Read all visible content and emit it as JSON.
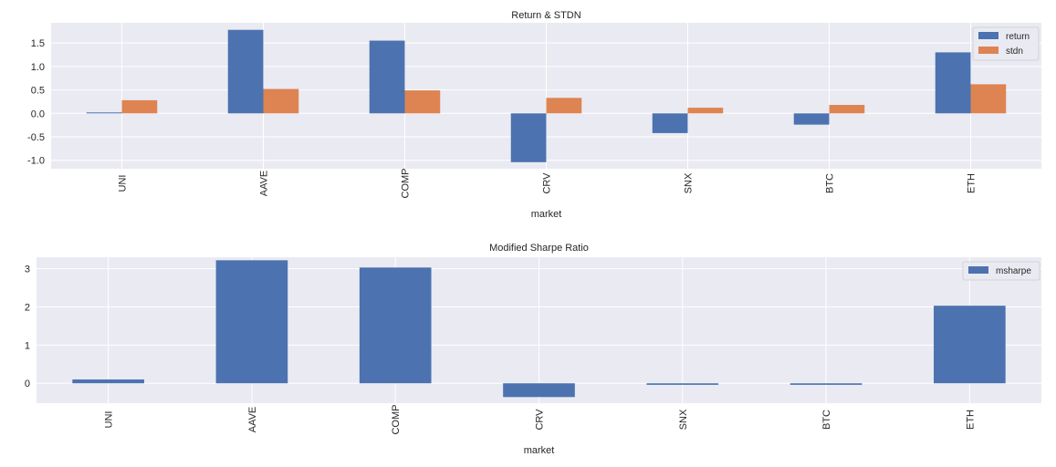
{
  "chart_data": [
    {
      "type": "bar",
      "title": "Return & STDN",
      "xlabel": "market",
      "ylabel": "",
      "categories": [
        "UNI",
        "AAVE",
        "COMP",
        "CRV",
        "SNX",
        "BTC",
        "ETH"
      ],
      "series": [
        {
          "name": "return",
          "color": "#4c72b0",
          "values": [
            0.02,
            1.78,
            1.55,
            -1.04,
            -0.42,
            -0.24,
            1.3
          ]
        },
        {
          "name": "stdn",
          "color": "#dd8452",
          "values": [
            0.28,
            0.52,
            0.49,
            0.33,
            0.12,
            0.18,
            0.62
          ]
        }
      ],
      "ylim": [
        -1.18,
        1.93
      ],
      "yticks": [
        "1.5",
        "1.0",
        "0.5",
        "0.0",
        "-0.5",
        "-1.0"
      ],
      "ytick_values": [
        1.5,
        1.0,
        0.5,
        0.0,
        -0.5,
        -1.0
      ],
      "grid": true,
      "legend": "top-right"
    },
    {
      "type": "bar",
      "title": "Modified Sharpe Ratio",
      "xlabel": "market",
      "ylabel": "",
      "categories": [
        "UNI",
        "AAVE",
        "COMP",
        "CRV",
        "SNX",
        "BTC",
        "ETH"
      ],
      "series": [
        {
          "name": "msharpe",
          "color": "#4c72b0",
          "values": [
            0.1,
            3.22,
            3.03,
            -0.36,
            -0.04,
            -0.04,
            2.03
          ]
        }
      ],
      "ylim": [
        -0.52,
        3.3
      ],
      "yticks": [
        "3",
        "2",
        "1",
        "0"
      ],
      "ytick_values": [
        3,
        2,
        1,
        0
      ],
      "grid": true,
      "legend": "top-right"
    }
  ]
}
